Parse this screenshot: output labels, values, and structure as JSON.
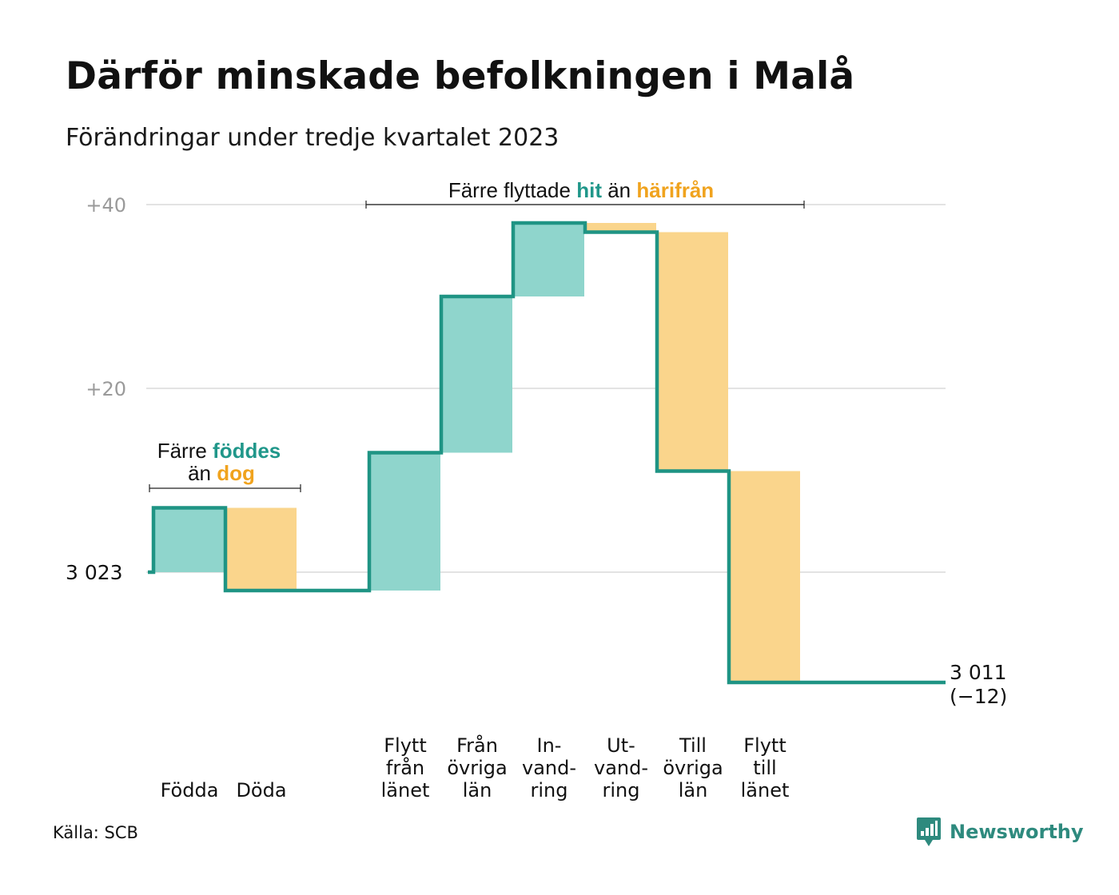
{
  "title": "Därför minskade befolkningen i Malå",
  "subtitle": "Förändringar under tredje kvartalet 2023",
  "source": "Källa: SCB",
  "logo": {
    "text": "Newsworthy",
    "icon": "newsworthy-logo-icon"
  },
  "colors": {
    "line": "#1f9484",
    "increase": "#8fd5cc",
    "decrease": "#fad58c",
    "grid": "#e3e3e3",
    "accent_teal": "#20978a",
    "accent_orange": "#f0a31e"
  },
  "annotations": {
    "births": {
      "line1_pre": "Färre ",
      "line1_em": "föddes",
      "line2_pre": "än ",
      "line2_em": "dog"
    },
    "migration": {
      "pre": "Färre flyttade ",
      "em1": "hit",
      "mid": " än ",
      "em2": "härifrån"
    }
  },
  "chart_data": {
    "type": "waterfall",
    "start": {
      "value": 3023,
      "label": "3  023"
    },
    "end": {
      "value": 3011,
      "label": "3 011",
      "change_label": "(−12)"
    },
    "yticks": [
      {
        "offset": 20,
        "label": "+20"
      },
      {
        "offset": 40,
        "label": "+40"
      }
    ],
    "steps": [
      {
        "label": [
          "Födda"
        ],
        "change": 7,
        "direction": "increase"
      },
      {
        "label": [
          "Döda"
        ],
        "change": -9,
        "direction": "decrease"
      },
      {
        "label": [],
        "change": 0,
        "direction": "none"
      },
      {
        "label": [
          "Flytt",
          "från",
          "länet"
        ],
        "change": 15,
        "direction": "increase"
      },
      {
        "label": [
          "Från",
          "övriga",
          "län"
        ],
        "change": 17,
        "direction": "increase"
      },
      {
        "label": [
          "In-",
          "vand-",
          "ring"
        ],
        "change": 8,
        "direction": "increase"
      },
      {
        "label": [
          "Ut-",
          "vand-",
          "ring"
        ],
        "change": -1,
        "direction": "decrease"
      },
      {
        "label": [
          "Till",
          "övriga",
          "län"
        ],
        "change": -26,
        "direction": "decrease"
      },
      {
        "label": [
          "Flytt",
          "till",
          "länet"
        ],
        "change": -23,
        "direction": "decrease"
      }
    ]
  }
}
